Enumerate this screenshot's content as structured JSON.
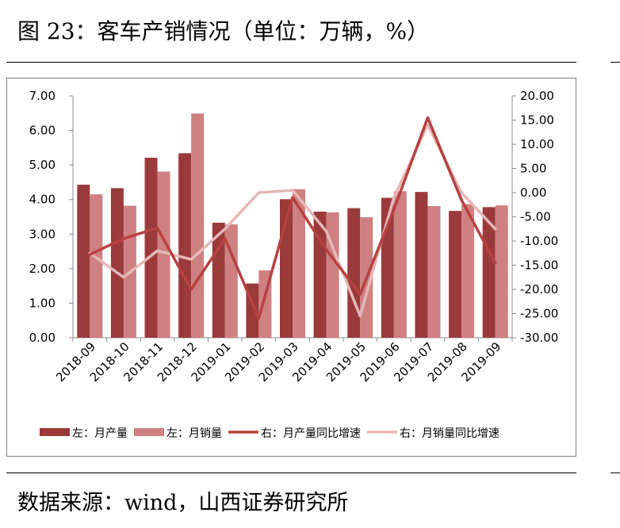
{
  "title": "图 23：客车产销情况（单位：万辆，%）",
  "source": "数据来源：wind，山西证券研究所",
  "colors": {
    "production_bar": "#9a3a3a",
    "sales_bar": "#cf8080",
    "production_line": "#b84141",
    "sales_line": "#e6b8b8",
    "axis": "#8c8c8c"
  },
  "chart_data": {
    "type": "bar",
    "categories": [
      "2018-09",
      "2018-10",
      "2018-11",
      "2018-12",
      "2019-01",
      "2019-02",
      "2019-03",
      "2019-04",
      "2019-05",
      "2019-06",
      "2019-07",
      "2019-08",
      "2019-09"
    ],
    "series": [
      {
        "name": "左：月产量",
        "type": "bar",
        "axis": "left",
        "values": [
          4.43,
          4.33,
          5.21,
          5.34,
          3.33,
          1.57,
          4.01,
          3.65,
          3.75,
          4.05,
          4.22,
          3.67,
          3.78
        ]
      },
      {
        "name": "左：月销量",
        "type": "bar",
        "axis": "left",
        "values": [
          4.15,
          3.82,
          4.81,
          6.49,
          3.28,
          1.95,
          4.3,
          3.63,
          3.49,
          4.24,
          3.81,
          3.87,
          3.83
        ]
      },
      {
        "name": "右：月产量同比增速",
        "type": "line",
        "axis": "right",
        "values": [
          -12.8,
          -9.5,
          -7.3,
          -20.0,
          -9.5,
          -26.0,
          -1.0,
          -11.8,
          -21.0,
          -3.5,
          15.5,
          -1.5,
          -14.5
        ]
      },
      {
        "name": "右：月销量同比增速",
        "type": "line",
        "axis": "right",
        "values": [
          -12.5,
          -17.5,
          -12.0,
          -13.8,
          -7.5,
          0.0,
          0.5,
          -8.0,
          -25.5,
          -1.0,
          14.0,
          0.0,
          -7.5
        ]
      }
    ],
    "y_left": {
      "ylim": [
        0,
        7
      ],
      "ticks": [
        "0.00",
        "1.00",
        "2.00",
        "3.00",
        "4.00",
        "5.00",
        "6.00",
        "7.00"
      ]
    },
    "y_right": {
      "ylim": [
        -30,
        20
      ],
      "ticks": [
        "-30.00",
        "-25.00",
        "-20.00",
        "-15.00",
        "-10.00",
        "-5.00",
        "0.00",
        "5.00",
        "10.00",
        "15.00",
        "20.00"
      ]
    },
    "grid": false,
    "legend_position": "bottom"
  }
}
